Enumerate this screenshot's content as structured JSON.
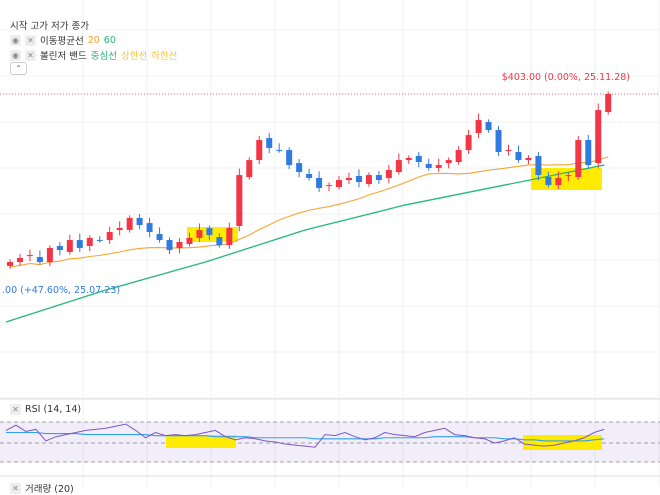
{
  "legend": {
    "ohlc": "시작 고가 저가 종가",
    "ma_label": "이동평균선",
    "ma_periods": [
      "20",
      "60"
    ],
    "bb_label": "볼린저 밴드",
    "bb_mid": "중심선",
    "bb_upper": "상한선",
    "bb_lower": "하한선"
  },
  "price_label": "$403.00 (0.00%, 25.11.28)",
  "low_label": ".00 (+47.60%, 25.07.23)",
  "rsi": {
    "label": "RSI (14, 14)",
    "values": [
      62,
      67,
      61,
      63,
      52,
      56,
      58,
      60,
      62,
      63,
      64,
      66,
      68,
      62,
      55,
      60,
      57,
      58,
      57,
      58,
      60,
      62,
      56,
      53,
      55,
      54,
      52,
      51,
      49,
      48,
      47,
      46,
      58,
      57,
      60,
      56,
      53,
      55,
      60,
      58,
      57,
      56,
      60,
      62,
      64,
      58,
      57,
      55,
      54,
      50,
      52,
      55,
      49,
      48,
      47,
      48,
      50,
      52,
      55,
      60,
      63
    ],
    "signal": [
      60,
      60,
      60,
      60,
      59,
      59,
      59,
      59,
      58,
      58,
      58,
      58,
      58,
      58,
      58,
      57,
      57,
      57,
      57,
      57,
      57,
      56,
      56,
      56,
      56,
      55,
      55,
      55,
      55,
      55,
      55,
      54,
      54,
      54,
      54,
      54,
      54,
      54,
      55,
      55,
      55,
      55,
      55,
      56,
      56,
      56,
      56,
      55,
      55,
      55,
      54,
      54,
      53,
      53,
      52,
      52,
      52,
      52,
      52,
      53,
      54
    ]
  },
  "volume_label": "거래량 (20)",
  "colors": {
    "up": "#f23645",
    "down": "#2f7be0",
    "ma20": "#f7a531",
    "ma60": "#26b877"
  },
  "chart_data": {
    "type": "candlestick",
    "closes": [
      275.3,
      278.4,
      280.6,
      275.3,
      286,
      284.4,
      292,
      286,
      293.6,
      292,
      298.1,
      301.2,
      308.8,
      303.4,
      298.1,
      292,
      284.4,
      290.5,
      293.6,
      299.6,
      295.8,
      288.2,
      301.2,
      341.4,
      352.8,
      368,
      362,
      360.4,
      349,
      343.7,
      339.2,
      331.6,
      333.8,
      337.6,
      339.2,
      336.1,
      341.4,
      337.6,
      345.2,
      352.8,
      354.4,
      351.3,
      346.8,
      349,
      352.8,
      360.4,
      371.8,
      383.2,
      375.6,
      358.9,
      360.4,
      352.8,
      354.4,
      341.4,
      333.8,
      339.2,
      341.4,
      368,
      349,
      390.8,
      403
    ],
    "ma60": [
      229.7,
      254,
      275.3,
      299.6,
      318.6,
      333.8,
      349
    ]
  }
}
